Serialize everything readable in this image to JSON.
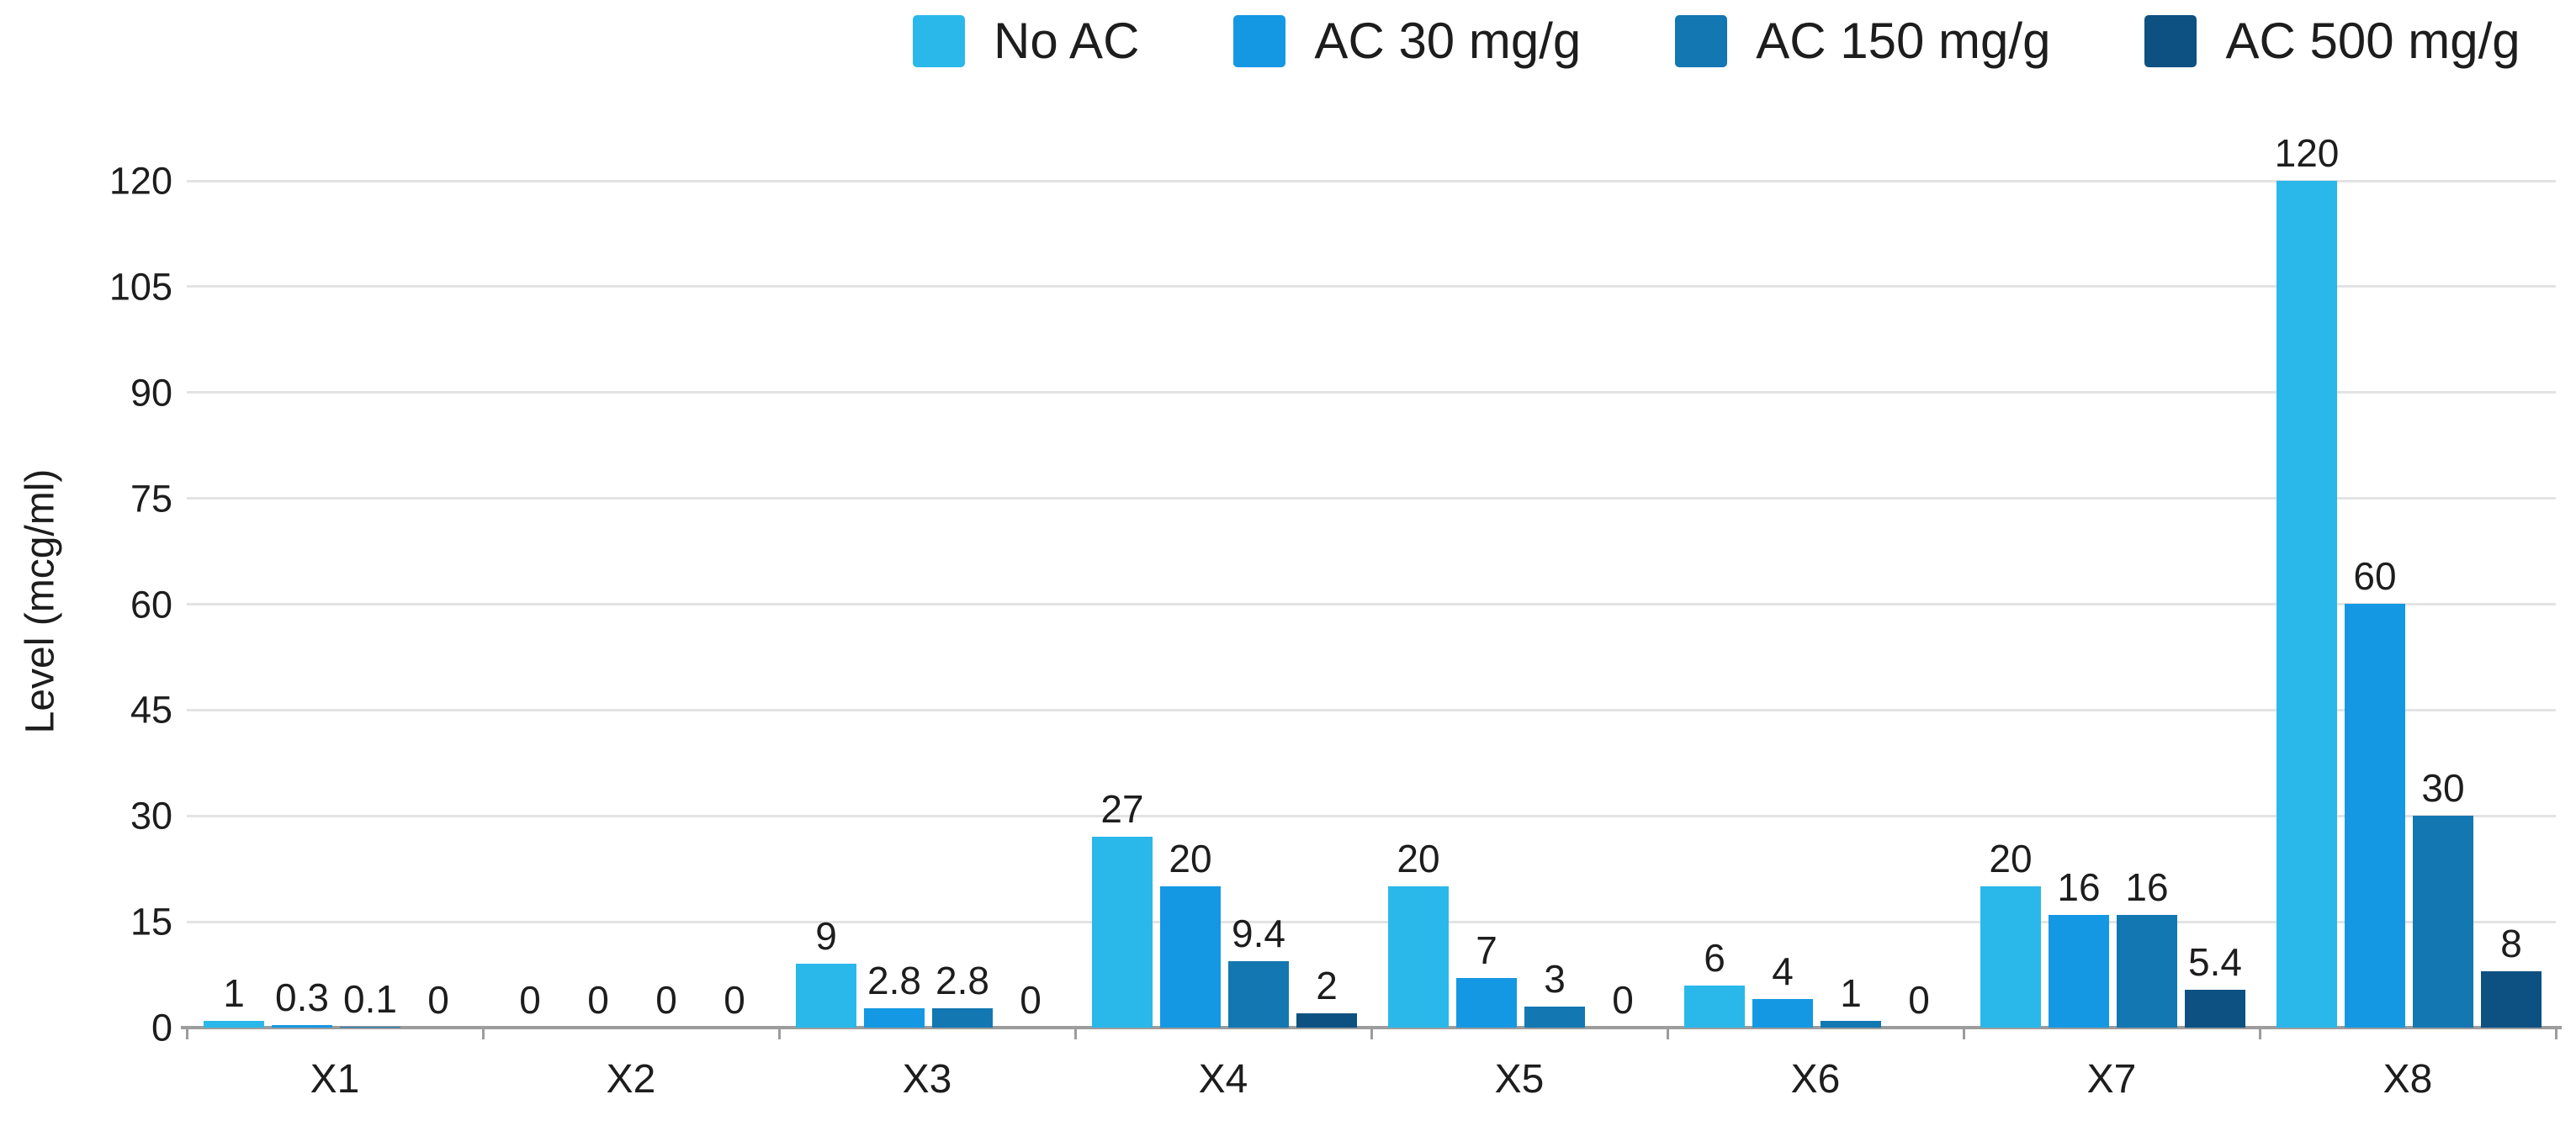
{
  "chart_data": {
    "type": "bar",
    "title": "",
    "ylabel": "Level (mcg/ml)",
    "xlabel": "",
    "ylim": [
      0,
      120
    ],
    "yticks": [
      0,
      15,
      30,
      45,
      60,
      75,
      90,
      105,
      120
    ],
    "grid": true,
    "legend_position": "top-center",
    "categories": [
      "X1",
      "X2",
      "X3",
      "X4",
      "X5",
      "X6",
      "X7",
      "X8"
    ],
    "series": [
      {
        "name": "No AC",
        "color": "#2ab8ea",
        "values": [
          1,
          0,
          9,
          27,
          20,
          6,
          20,
          120
        ]
      },
      {
        "name": "AC 30 mg/g",
        "color": "#1598e3",
        "values": [
          0.3,
          0,
          2.8,
          20,
          7,
          4,
          16,
          60
        ]
      },
      {
        "name": "AC 150 mg/g",
        "color": "#1377b2",
        "values": [
          0.1,
          0,
          2.8,
          9.4,
          3,
          1,
          16,
          30
        ]
      },
      {
        "name": "AC 500 mg/g",
        "color": "#0d5182",
        "values": [
          0,
          0,
          0,
          2,
          0,
          0,
          5.4,
          8
        ]
      }
    ],
    "colors": {
      "grid": "#e3e3e3",
      "axis": "#9c9c9c",
      "text": "#1d1d1d",
      "background": "#ffffff"
    }
  }
}
